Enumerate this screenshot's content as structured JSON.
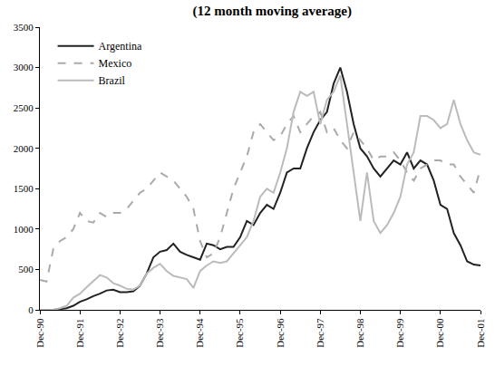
{
  "chart_data": {
    "type": "line",
    "title": "(12 month moving average)",
    "categories": [
      "Dec-90",
      null,
      null,
      null,
      null,
      null,
      "Dec-91",
      null,
      null,
      null,
      null,
      null,
      "Dec-92",
      null,
      null,
      null,
      null,
      null,
      "Dec-93",
      null,
      null,
      null,
      null,
      null,
      "Dec-94",
      null,
      null,
      null,
      null,
      null,
      "Dec-95",
      null,
      null,
      null,
      null,
      null,
      "Dec-96",
      null,
      null,
      null,
      null,
      null,
      "Dec-97",
      null,
      null,
      null,
      null,
      null,
      "Dec-98",
      null,
      null,
      null,
      null,
      null,
      "Dec-99",
      null,
      null,
      null,
      null,
      null,
      "Dec-00",
      null,
      null,
      null,
      null,
      null,
      "Dec-01"
    ],
    "series": [
      {
        "name": "Argentina",
        "color": "#222222",
        "line_style": "solid",
        "values": [
          0,
          0,
          0,
          10,
          20,
          50,
          100,
          130,
          170,
          200,
          240,
          250,
          220,
          220,
          230,
          300,
          450,
          650,
          720,
          740,
          820,
          720,
          680,
          650,
          620,
          820,
          800,
          750,
          780,
          780,
          900,
          1100,
          1050,
          1200,
          1300,
          1250,
          1450,
          1700,
          1750,
          1750,
          2000,
          2200,
          2350,
          2450,
          2800,
          3000,
          2700,
          2300,
          2000,
          1900,
          1750,
          1650,
          1750,
          1850,
          1800,
          1950,
          1750,
          1850,
          1800,
          1600,
          1300,
          1250,
          950,
          800,
          600,
          560,
          550
        ]
      },
      {
        "name": "Mexico",
        "color": "#aaaaaa",
        "line_style": "dash",
        "values": [
          370,
          350,
          750,
          850,
          900,
          1000,
          1200,
          1100,
          1080,
          1200,
          1150,
          1200,
          1200,
          1250,
          1350,
          1450,
          1500,
          1600,
          1700,
          1650,
          1600,
          1500,
          1400,
          1250,
          850,
          650,
          700,
          900,
          1200,
          1500,
          1700,
          1900,
          2200,
          2300,
          2200,
          2100,
          2150,
          2300,
          2400,
          2200,
          2300,
          2400,
          2450,
          2200,
          2250,
          2100,
          2000,
          2200,
          2100,
          2000,
          1850,
          1900,
          1900,
          1950,
          1850,
          1700,
          1600,
          1750,
          1800,
          1850,
          1850,
          1800,
          1800,
          1650,
          1550,
          1450,
          1750
        ]
      },
      {
        "name": "Brazil",
        "color": "#bbbbbb",
        "line_style": "solid",
        "values": [
          0,
          0,
          0,
          20,
          50,
          150,
          200,
          280,
          350,
          430,
          400,
          330,
          300,
          260,
          250,
          300,
          450,
          520,
          570,
          480,
          420,
          400,
          380,
          270,
          480,
          550,
          600,
          580,
          600,
          700,
          800,
          900,
          1100,
          1400,
          1500,
          1450,
          1700,
          2000,
          2450,
          2700,
          2650,
          2700,
          2300,
          2600,
          2700,
          2900,
          2300,
          1700,
          1100,
          1700,
          1100,
          950,
          1050,
          1200,
          1400,
          1800,
          1950,
          2400,
          2400,
          2350,
          2250,
          2300,
          2600,
          2300,
          2100,
          1950,
          1920
        ]
      }
    ],
    "ylim": [
      0,
      3500
    ],
    "yticks": [
      0,
      500,
      1000,
      1500,
      2000,
      2500,
      3000,
      3500
    ],
    "grid": false,
    "legend": "upper left"
  }
}
